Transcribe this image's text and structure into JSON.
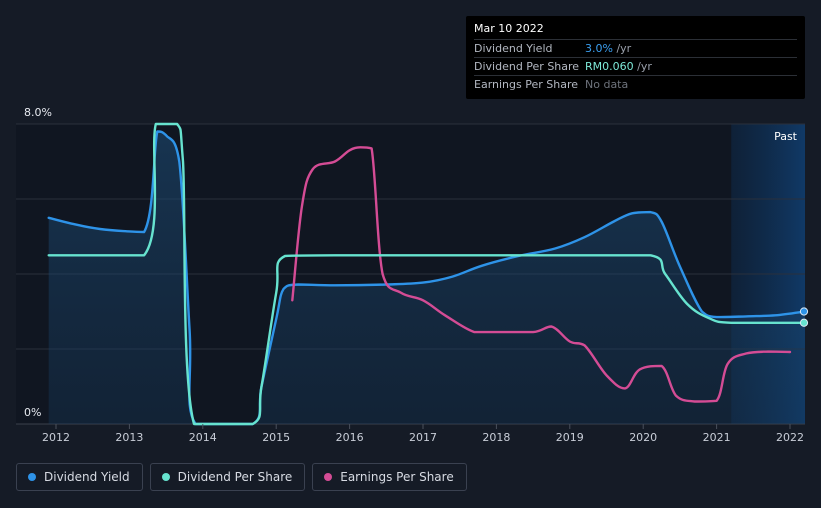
{
  "tooltip": {
    "date": "Mar 10 2022",
    "rows": [
      {
        "label": "Dividend Yield",
        "value": "3.0%",
        "unit": " /yr",
        "color": "#3b9ff0"
      },
      {
        "label": "Dividend Per Share",
        "value": "RM0.060",
        "unit": " /yr",
        "color": "#7de9d8"
      },
      {
        "label": "Earnings Per Share",
        "value": "No data",
        "unit": "",
        "color": "#6e737c"
      }
    ]
  },
  "legend": [
    {
      "label": "Dividend Yield",
      "color": "#2e93e8"
    },
    {
      "label": "Dividend Per Share",
      "color": "#67e3cf"
    },
    {
      "label": "Earnings Per Share",
      "color": "#d44c95"
    }
  ],
  "past_label": "Past",
  "chart_data": {
    "type": "line",
    "ylim": [
      0,
      8
    ],
    "y_tick_labels": [
      "8.0%",
      "0%"
    ],
    "x_ticks": [
      2012,
      2013,
      2014,
      2015,
      2016,
      2017,
      2018,
      2019,
      2020,
      2021,
      2022
    ],
    "xlim": [
      2011.9,
      2022.2
    ],
    "past_region_start": 2021.2,
    "series": [
      {
        "name": "Dividend Yield",
        "color": "#2e93e8",
        "filled": true,
        "points": [
          [
            2011.9,
            5.5
          ],
          [
            2012.2,
            5.35
          ],
          [
            2012.6,
            5.2
          ],
          [
            2013.2,
            5.12
          ],
          [
            2013.38,
            7.8
          ],
          [
            2013.5,
            7.7
          ],
          [
            2013.68,
            7.0
          ],
          [
            2013.82,
            2.5
          ],
          [
            2013.9,
            0
          ],
          [
            2014.68,
            0
          ],
          [
            2014.8,
            1.0
          ],
          [
            2015.0,
            2.8
          ],
          [
            2015.1,
            3.6
          ],
          [
            2015.3,
            3.72
          ],
          [
            2015.8,
            3.7
          ],
          [
            2016.5,
            3.72
          ],
          [
            2017.0,
            3.77
          ],
          [
            2017.4,
            3.93
          ],
          [
            2017.8,
            4.22
          ],
          [
            2018.3,
            4.48
          ],
          [
            2018.8,
            4.68
          ],
          [
            2019.2,
            4.98
          ],
          [
            2019.6,
            5.4
          ],
          [
            2019.85,
            5.62
          ],
          [
            2020.1,
            5.65
          ],
          [
            2020.25,
            5.4
          ],
          [
            2020.5,
            4.2
          ],
          [
            2020.8,
            3.0
          ],
          [
            2021.0,
            2.85
          ],
          [
            2021.4,
            2.87
          ],
          [
            2021.8,
            2.9
          ],
          [
            2022.2,
            3.0
          ]
        ]
      },
      {
        "name": "Dividend Per Share",
        "color": "#67e3cf",
        "filled": false,
        "points": [
          [
            2011.9,
            4.5
          ],
          [
            2013.2,
            4.5
          ],
          [
            2013.36,
            8.0
          ],
          [
            2013.65,
            8.0
          ],
          [
            2013.73,
            7.0
          ],
          [
            2013.88,
            0
          ],
          [
            2014.68,
            0
          ],
          [
            2014.8,
            1.0
          ],
          [
            2015.0,
            3.5
          ],
          [
            2015.12,
            4.48
          ],
          [
            2016.0,
            4.5
          ],
          [
            2017.0,
            4.5
          ],
          [
            2018.0,
            4.5
          ],
          [
            2019.0,
            4.5
          ],
          [
            2020.1,
            4.5
          ],
          [
            2020.3,
            4.0
          ],
          [
            2020.6,
            3.2
          ],
          [
            2020.9,
            2.82
          ],
          [
            2021.2,
            2.7
          ],
          [
            2022.2,
            2.7
          ]
        ]
      },
      {
        "name": "Earnings Per Share",
        "color": "#d44c95",
        "filled": false,
        "points": [
          [
            2015.22,
            3.3
          ],
          [
            2015.35,
            5.8
          ],
          [
            2015.5,
            6.8
          ],
          [
            2015.8,
            7.0
          ],
          [
            2016.0,
            7.3
          ],
          [
            2016.15,
            7.38
          ],
          [
            2016.3,
            7.35
          ],
          [
            2016.45,
            4.0
          ],
          [
            2016.7,
            3.5
          ],
          [
            2017.0,
            3.3
          ],
          [
            2017.3,
            2.9
          ],
          [
            2017.7,
            2.45
          ],
          [
            2018.0,
            2.45
          ],
          [
            2018.5,
            2.45
          ],
          [
            2018.75,
            2.6
          ],
          [
            2019.0,
            2.2
          ],
          [
            2019.2,
            2.1
          ],
          [
            2019.5,
            1.3
          ],
          [
            2019.75,
            0.95
          ],
          [
            2019.95,
            1.45
          ],
          [
            2020.25,
            1.55
          ],
          [
            2020.45,
            0.75
          ],
          [
            2020.7,
            0.6
          ],
          [
            2021.0,
            0.62
          ],
          [
            2021.15,
            1.6
          ],
          [
            2021.4,
            1.88
          ],
          [
            2021.7,
            1.93
          ],
          [
            2022.0,
            1.92
          ]
        ]
      }
    ]
  }
}
